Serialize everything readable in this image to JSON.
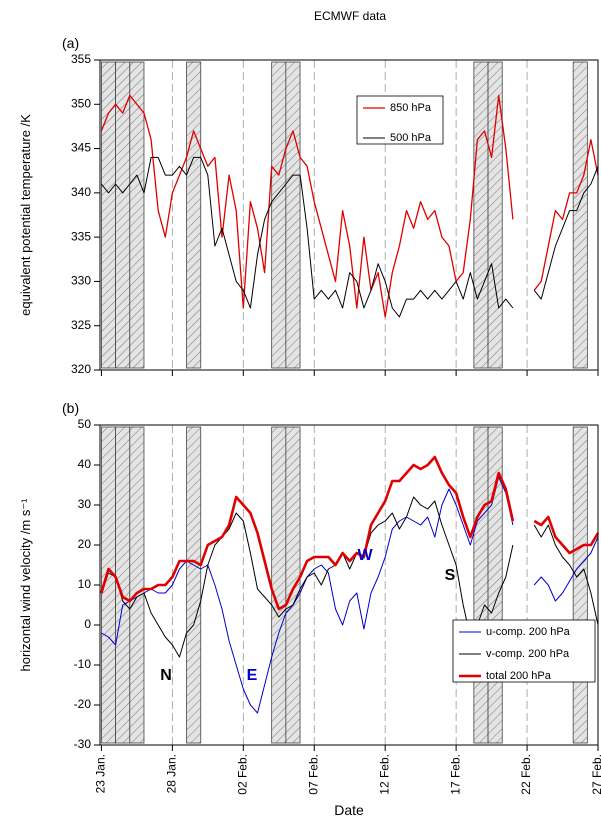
{
  "chart_data": [
    {
      "type": "line",
      "title": "ECMWF data",
      "panel_label": "(a)",
      "ylabel": "equivalent potential temperature /K",
      "x": [
        23,
        23.5,
        24,
        24.5,
        25,
        25.5,
        26,
        26.5,
        27,
        27.5,
        28,
        28.5,
        29,
        29.5,
        30,
        30.5,
        31,
        31.5,
        32,
        32.5,
        33,
        33.5,
        34,
        34.5,
        35,
        35.5,
        36,
        36.5,
        37,
        37.5,
        38,
        38.5,
        39,
        39.5,
        40,
        40.5,
        41,
        41.5,
        42,
        42.5,
        43,
        43.5,
        44,
        44.5,
        45,
        45.5,
        46,
        46.5,
        47,
        47.5,
        48,
        48.5,
        49,
        49.5,
        50,
        50.5,
        51,
        51.5,
        52,
        52.5,
        53,
        53.5,
        54,
        54.5,
        55,
        55.5,
        56,
        56.5,
        57,
        57.5,
        58
      ],
      "series": [
        {
          "name": "850 hPa",
          "color": "#e00000",
          "line_width": 1.3,
          "values": [
            347,
            349,
            350,
            349,
            351,
            350,
            349,
            346,
            338,
            335,
            340,
            342,
            344,
            347,
            345,
            343,
            344,
            335,
            342,
            338,
            327,
            339,
            336,
            331,
            343,
            342,
            345,
            347,
            344,
            343,
            339,
            336,
            333,
            330,
            338,
            334,
            327,
            335,
            329,
            331,
            326,
            331,
            334,
            338,
            336,
            339,
            337,
            338,
            335,
            334,
            330,
            331,
            337,
            346,
            347,
            344,
            351,
            345,
            337,
            null,
            null,
            329,
            330,
            334,
            338,
            337,
            340,
            340,
            342,
            346,
            342
          ]
        },
        {
          "name": "500 hPa",
          "color": "#000000",
          "line_width": 1,
          "values": [
            341,
            340,
            341,
            340,
            341,
            342,
            340,
            344,
            344,
            342,
            342,
            343,
            342,
            344,
            344,
            342,
            334,
            336,
            333,
            330,
            329,
            327,
            333,
            337,
            339,
            340,
            341,
            342,
            342,
            336,
            328,
            329,
            328,
            329,
            327,
            331,
            330,
            327,
            329,
            332,
            330,
            327,
            326,
            328,
            328,
            329,
            328,
            329,
            328,
            329,
            330,
            328,
            331,
            328,
            330,
            332,
            327,
            328,
            327,
            null,
            null,
            329,
            328,
            331,
            334,
            336,
            338,
            338,
            340,
            341,
            343
          ]
        }
      ],
      "xlim": [
        22.9,
        58
      ],
      "xticks": [
        23,
        28,
        33,
        38,
        43,
        48,
        53,
        58
      ],
      "ylim": [
        320,
        355
      ],
      "yticks": [
        320,
        325,
        330,
        335,
        340,
        345,
        350,
        355
      ],
      "shaded_regions": [
        [
          23,
          24
        ],
        [
          24,
          25
        ],
        [
          25,
          26
        ],
        [
          29,
          30
        ],
        [
          35,
          36
        ],
        [
          36,
          37
        ],
        [
          49.25,
          50.25
        ],
        [
          50.25,
          51.25
        ],
        [
          56.25,
          57.25
        ]
      ],
      "grid": true
    },
    {
      "type": "line",
      "panel_label": "(b)",
      "ylabel": "horizontal wind velocity /m s⁻¹",
      "xlabel": "Date",
      "x": [
        23,
        23.5,
        24,
        24.5,
        25,
        25.5,
        26,
        26.5,
        27,
        27.5,
        28,
        28.5,
        29,
        29.5,
        30,
        30.5,
        31,
        31.5,
        32,
        32.5,
        33,
        33.5,
        34,
        34.5,
        35,
        35.5,
        36,
        36.5,
        37,
        37.5,
        38,
        38.5,
        39,
        39.5,
        40,
        40.5,
        41,
        41.5,
        42,
        42.5,
        43,
        43.5,
        44,
        44.5,
        45,
        45.5,
        46,
        46.5,
        47,
        47.5,
        48,
        48.5,
        49,
        49.5,
        50,
        50.5,
        51,
        51.5,
        52,
        52.5,
        53,
        53.5,
        54,
        54.5,
        55,
        55.5,
        56,
        56.5,
        57,
        57.5,
        58
      ],
      "series": [
        {
          "name": "u-comp. 200 hPa",
          "color": "#0000cc",
          "line_width": 1,
          "values": [
            -2,
            -3,
            -5,
            5,
            6,
            7,
            8,
            9,
            8,
            8,
            10,
            14,
            16,
            15,
            14,
            15,
            10,
            4,
            -4,
            -10,
            -16,
            -20,
            -22,
            -15,
            -8,
            -2,
            3,
            5,
            8,
            12,
            14,
            15,
            13,
            4,
            0,
            6,
            8,
            -1,
            8,
            12,
            17,
            24,
            26,
            27,
            26,
            25,
            27,
            22,
            30,
            34,
            30,
            25,
            20,
            26,
            28,
            30,
            37,
            33,
            25,
            null,
            null,
            10,
            12,
            10,
            6,
            8,
            11,
            14,
            16,
            18,
            22
          ]
        },
        {
          "name": "v-comp. 200 hPa",
          "color": "#000000",
          "line_width": 1,
          "values": [
            8,
            13,
            12,
            6,
            4,
            7,
            8,
            3,
            0,
            -3,
            -5,
            -8,
            -2,
            0,
            6,
            15,
            20,
            22,
            24,
            28,
            26,
            18,
            9,
            7,
            5,
            2,
            4,
            5,
            9,
            12,
            13,
            10,
            14,
            15,
            18,
            14,
            18,
            17,
            23,
            25,
            26,
            28,
            24,
            27,
            32,
            30,
            29,
            31,
            25,
            20,
            15,
            5,
            -3,
            0,
            5,
            3,
            8,
            12,
            20,
            null,
            null,
            25,
            22,
            25,
            20,
            17,
            15,
            12,
            14,
            8,
            0
          ]
        },
        {
          "name": "total 200 hPa",
          "color": "#e00000",
          "line_width": 2.6,
          "values": [
            8,
            14,
            12,
            7,
            6,
            8,
            9,
            9,
            10,
            10,
            12,
            16,
            16,
            16,
            15,
            20,
            21,
            22,
            25,
            32,
            30,
            28,
            23,
            16,
            9,
            4,
            5,
            9,
            12,
            16,
            17,
            17,
            17,
            15,
            18,
            16,
            18,
            17,
            25,
            28,
            31,
            36,
            36,
            38,
            40,
            39,
            40,
            42,
            38,
            35,
            33,
            27,
            22,
            27,
            30,
            31,
            38,
            34,
            26,
            null,
            null,
            26,
            25,
            27,
            22,
            20,
            18,
            19,
            20,
            20,
            23
          ]
        }
      ],
      "xlim": [
        22.9,
        58
      ],
      "xticks": [
        {
          "value": 23,
          "label": "23 Jan."
        },
        {
          "value": 28,
          "label": "28 Jan."
        },
        {
          "value": 33,
          "label": "02 Feb."
        },
        {
          "value": 38,
          "label": "07 Feb."
        },
        {
          "value": 43,
          "label": "12 Feb."
        },
        {
          "value": 48,
          "label": "17 Feb."
        },
        {
          "value": 53,
          "label": "22 Feb."
        },
        {
          "value": 58,
          "label": "27 Feb."
        }
      ],
      "ylim": [
        -30,
        50
      ],
      "yticks": [
        -30,
        -20,
        -10,
        0,
        10,
        20,
        30,
        40,
        50
      ],
      "shaded_regions": [
        [
          23,
          24
        ],
        [
          24,
          25
        ],
        [
          25,
          26
        ],
        [
          29,
          30
        ],
        [
          35,
          36
        ],
        [
          36,
          37
        ],
        [
          49.25,
          50.25
        ],
        [
          50.25,
          51.25
        ],
        [
          56.25,
          57.25
        ]
      ],
      "annotations": [
        {
          "text": "N",
          "color": "#000000"
        },
        {
          "text": "E",
          "color": "#0000cc"
        },
        {
          "text": "W",
          "color": "#0000cc"
        },
        {
          "text": "S",
          "color": "#000000"
        }
      ],
      "grid": true
    }
  ]
}
